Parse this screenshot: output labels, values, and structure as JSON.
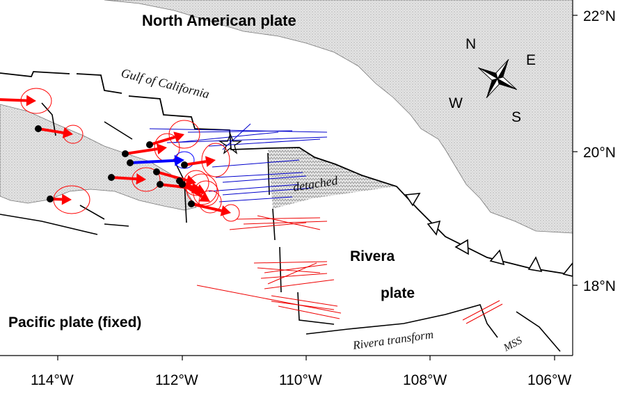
{
  "labels": {
    "north_american_plate": "North American plate",
    "gulf": "Gulf of California",
    "detached": "detached",
    "rivera": "Rivera",
    "plate": "plate",
    "pacific": "Pacific plate (fixed)",
    "rivera_transform": "Rivera transform",
    "mss": "MSS"
  },
  "compass": {
    "n": "N",
    "e": "E",
    "s": "S",
    "w": "W"
  },
  "axes": {
    "lon_ticks": [
      "114°W",
      "112°W",
      "110°W",
      "108°W",
      "106°W"
    ],
    "lat_ticks": [
      "22°N",
      "20°N",
      "18°N"
    ]
  },
  "colors": {
    "land": "#dcdcdc",
    "vectors": "#ff0000",
    "highlight_vector": "#0000ff",
    "blue_lines": "#0000cc",
    "red_lines": "#ee0000"
  }
}
